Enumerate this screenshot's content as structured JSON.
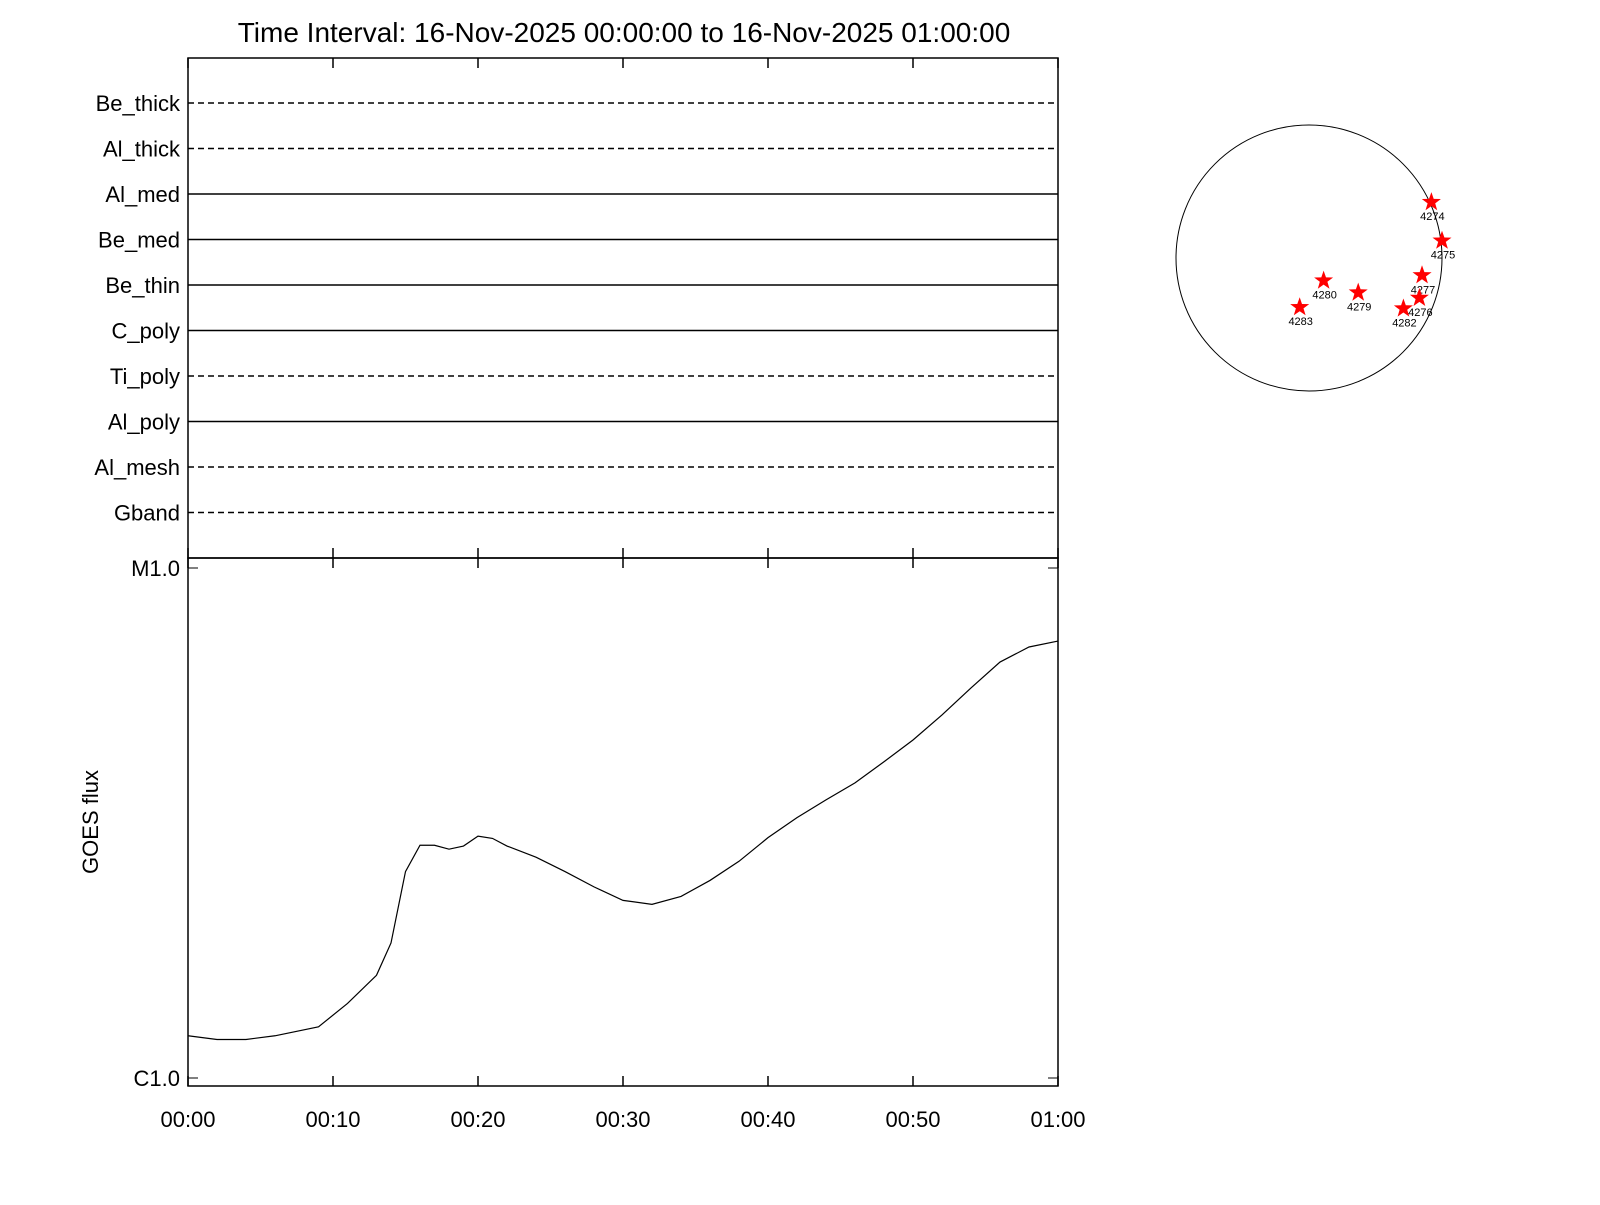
{
  "chart_data": [
    {
      "type": "filter-status",
      "title": "Time Interval: 16-Nov-2025 00:00:00 to 16-Nov-2025 01:00:00",
      "categories": [
        "Be_thick",
        "Al_thick",
        "Al_med",
        "Be_med",
        "Be_thin",
        "C_poly",
        "Ti_poly",
        "Al_poly",
        "Al_mesh",
        "Gband"
      ],
      "styles": [
        "dashed",
        "dashed",
        "solid",
        "solid",
        "solid",
        "solid",
        "dashed",
        "solid",
        "dashed",
        "dashed"
      ],
      "color": "#000000"
    },
    {
      "type": "line",
      "ylabel": "GOES flux",
      "log_scale": true,
      "x": [
        "00:00",
        "00:02",
        "00:04",
        "00:06",
        "00:09",
        "00:11",
        "00:13",
        "00:14",
        "00:15",
        "00:16",
        "00:17",
        "00:18",
        "00:19",
        "00:20",
        "00:21",
        "00:22",
        "00:24",
        "00:26",
        "00:28",
        "00:30",
        "00:32",
        "00:34",
        "00:36",
        "00:38",
        "00:40",
        "00:42",
        "00:44",
        "00:46",
        "00:48",
        "00:50",
        "00:52",
        "00:54",
        "00:56",
        "00:58",
        "01:00"
      ],
      "values": [
        1.21e-06,
        1.19e-06,
        1.19e-06,
        1.21e-06,
        1.26e-06,
        1.4e-06,
        1.59e-06,
        1.84e-06,
        2.54e-06,
        2.86e-06,
        2.86e-06,
        2.81e-06,
        2.85e-06,
        2.98e-06,
        2.95e-06,
        2.85e-06,
        2.71e-06,
        2.54e-06,
        2.37e-06,
        2.23e-06,
        2.19e-06,
        2.27e-06,
        2.44e-06,
        2.66e-06,
        2.96e-06,
        3.24e-06,
        3.51e-06,
        3.79e-06,
        4.17e-06,
        4.6e-06,
        5.15e-06,
        5.82e-06,
        6.54e-06,
        7e-06,
        7.19e-06
      ],
      "color": "#000000",
      "xlim": [
        "00:00",
        "01:00"
      ],
      "xticks": [
        "00:00",
        "00:10",
        "00:20",
        "00:30",
        "00:40",
        "00:50",
        "01:00"
      ],
      "ylim": [
        1e-06,
        1e-05
      ],
      "yticks": [
        {
          "value": 1e-06,
          "label": "C1.0"
        },
        {
          "value": 1e-05,
          "label": "M1.0"
        }
      ]
    },
    {
      "type": "disk-scatter",
      "labels": [
        "4274",
        "4275",
        "4277",
        "4276",
        "4282",
        "4279",
        "4280",
        "4283"
      ],
      "x": [
        0.92,
        1.0,
        0.85,
        0.83,
        0.71,
        0.37,
        0.11,
        -0.07
      ],
      "values": [
        0.42,
        0.13,
        -0.13,
        -0.3,
        -0.38,
        -0.26,
        -0.17,
        -0.37
      ],
      "color": "#ff0000"
    }
  ]
}
